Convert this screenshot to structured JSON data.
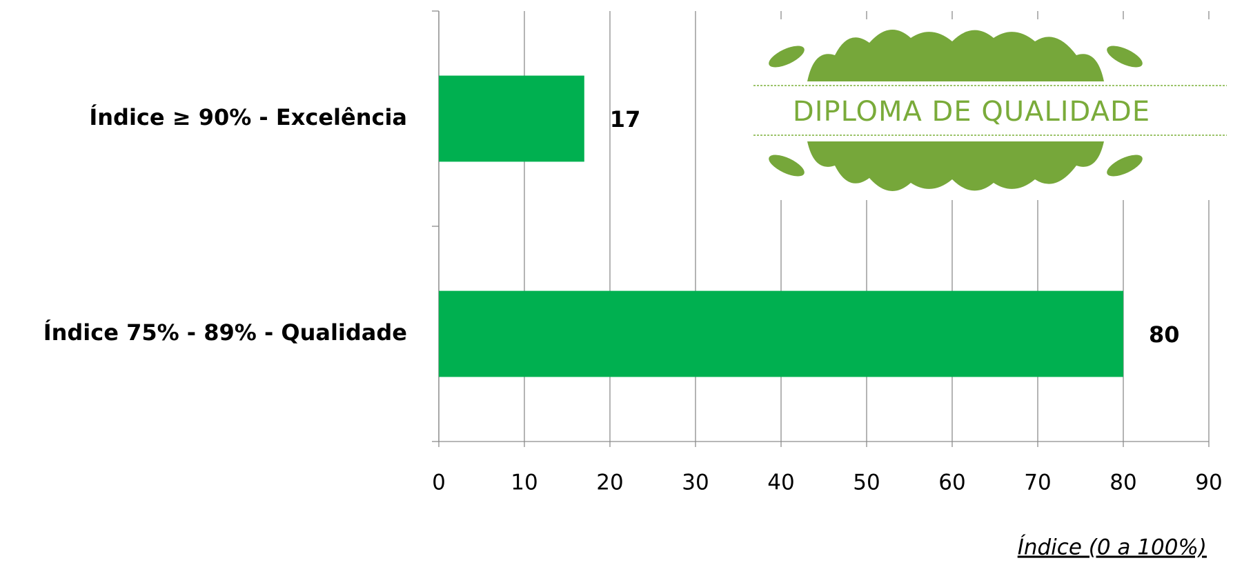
{
  "chart_data": {
    "type": "bar",
    "orientation": "horizontal",
    "categories": [
      "Índice ≥ 90% - Excelência",
      "Índice 75% - 89% - Qualidade"
    ],
    "values": [
      17,
      80
    ],
    "color": "#00b050",
    "xlim": [
      0,
      90
    ],
    "xticks": [
      0,
      10,
      20,
      30,
      40,
      50,
      60,
      70,
      80,
      90
    ],
    "grid": true,
    "x_label": "Índice (0 a 100%)",
    "annotation": "DIPLOMA DE QUALIDADE"
  }
}
